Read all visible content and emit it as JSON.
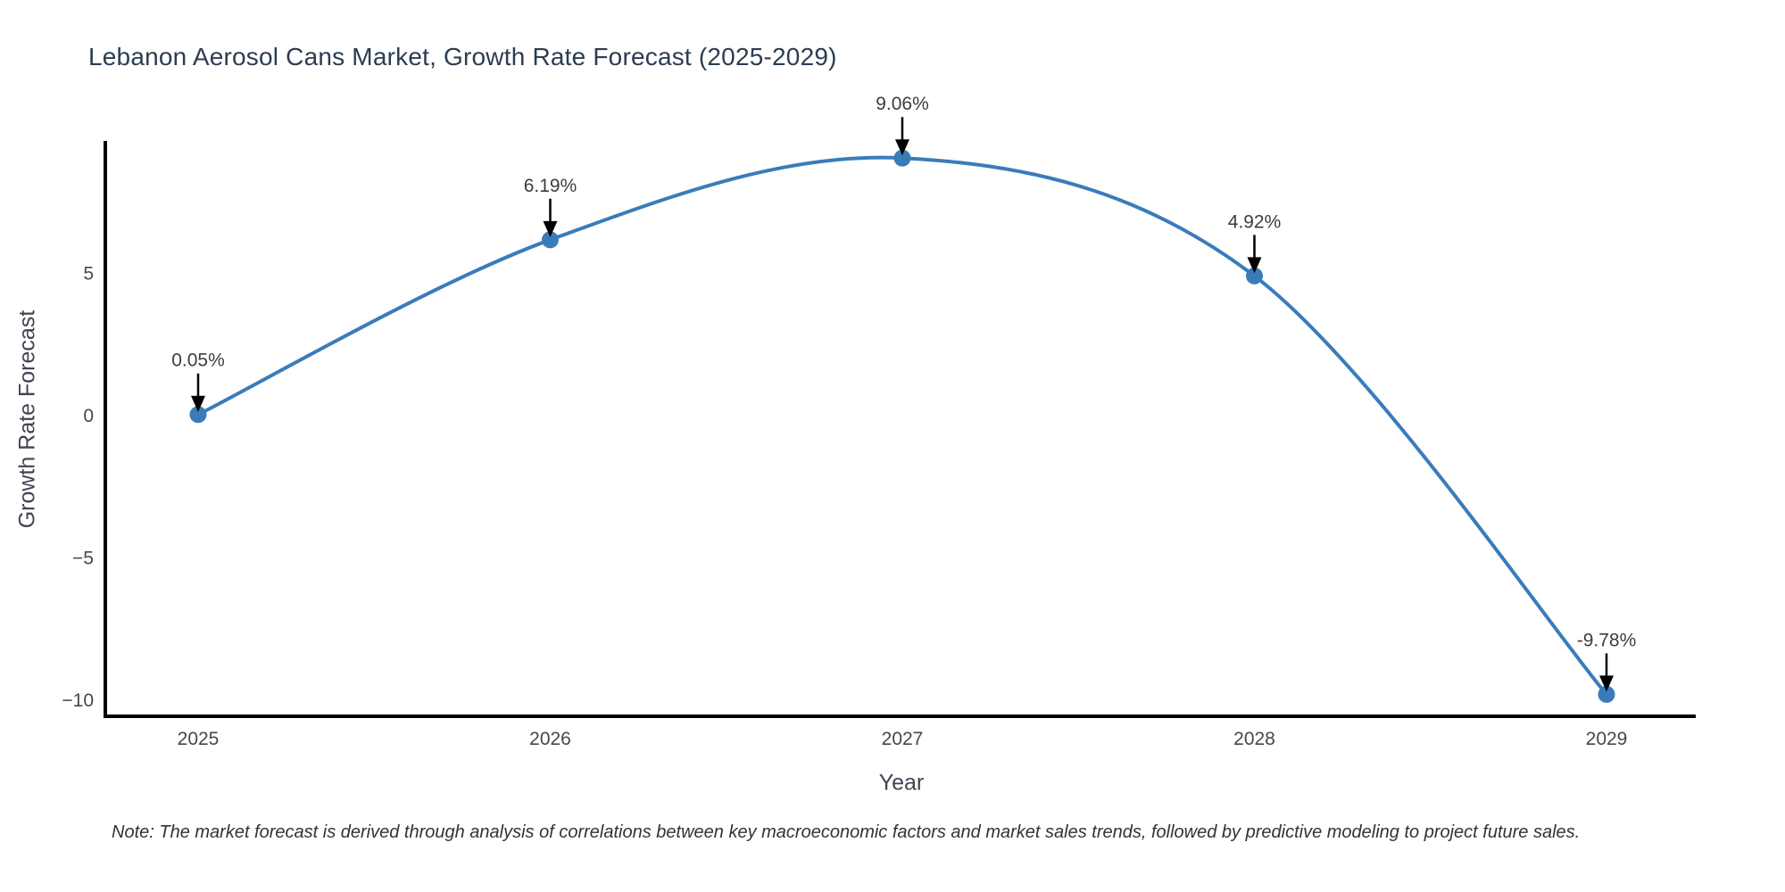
{
  "chart_data": {
    "type": "line",
    "title": "Lebanon Aerosol Cans Market, Growth Rate Forecast (2025-2029)",
    "xlabel": "Year",
    "ylabel": "Growth Rate Forecast",
    "x": [
      "2025",
      "2026",
      "2027",
      "2028",
      "2029"
    ],
    "series": [
      {
        "name": "Growth Rate Forecast",
        "values": [
          0.05,
          6.19,
          9.06,
          4.92,
          -9.78
        ]
      }
    ],
    "point_labels": [
      "0.05%",
      "6.19%",
      "9.06%",
      "4.92%",
      "-9.78%"
    ],
    "yticks": [
      5,
      0,
      -5,
      -10
    ],
    "ytick_labels": [
      "5",
      "0",
      "−5",
      "−10"
    ],
    "ylim": [
      -10.55,
      9.6
    ],
    "grid": false,
    "legend_position": "none",
    "line_shape": "spline",
    "line_color": "#3a7cba",
    "marker_color": "#3a7cba",
    "arrow_color": "#000000",
    "axis_line_color": "#000000",
    "tick_text_color": "#474747",
    "annotation_text_color": "#3d3d3d",
    "title_color": "#2b3d52"
  },
  "note": "Note: The market forecast is derived through analysis of correlations between key macroeconomic factors and market sales trends, followed by predictive modeling to project future sales."
}
